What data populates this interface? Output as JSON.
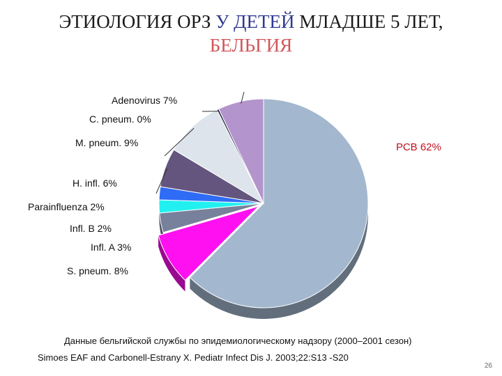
{
  "title": {
    "line1_a": "ЭТИОЛОГИЯ ОРЗ ",
    "line1_b": "У ДЕТЕЙ",
    "line1_c": " МЛАДШЕ 5 ЛЕТ,",
    "line2": "БЕЛЬГИЯ"
  },
  "note": "Данные бельгийской службы по эпидемиологическому надзору (2000–2001 сезон)",
  "reference": "Simoes EAF and Carbonell-Estrany X. Pediatr Infect Dis J. 2003;22:S13 -S20",
  "page_number": "26",
  "chart_data": {
    "type": "pie",
    "title": "",
    "slices": [
      {
        "label": "РСВ 62%",
        "value": 62,
        "color": "#a3b8cf"
      },
      {
        "label": "S. pneum. 8%",
        "value": 8,
        "color": "#ff10f0"
      },
      {
        "label": "Infl. A 3%",
        "value": 3,
        "color": "#78819b"
      },
      {
        "label": "Infl. B 2%",
        "value": 2,
        "color": "#22f0f0"
      },
      {
        "label": "Parainfluenza 2%",
        "value": 2,
        "color": "#2f6cf5"
      },
      {
        "label": "H. infl. 6%",
        "value": 6,
        "color": "#64557e"
      },
      {
        "label": "M. pneum. 9%",
        "value": 9,
        "color": "#dde4ec"
      },
      {
        "label": "C. pneum. 0%",
        "value": 0.3,
        "color": "#2a2a4a"
      },
      {
        "label": "Adenovirus 7%",
        "value": 7,
        "color": "#b394cc"
      }
    ]
  }
}
